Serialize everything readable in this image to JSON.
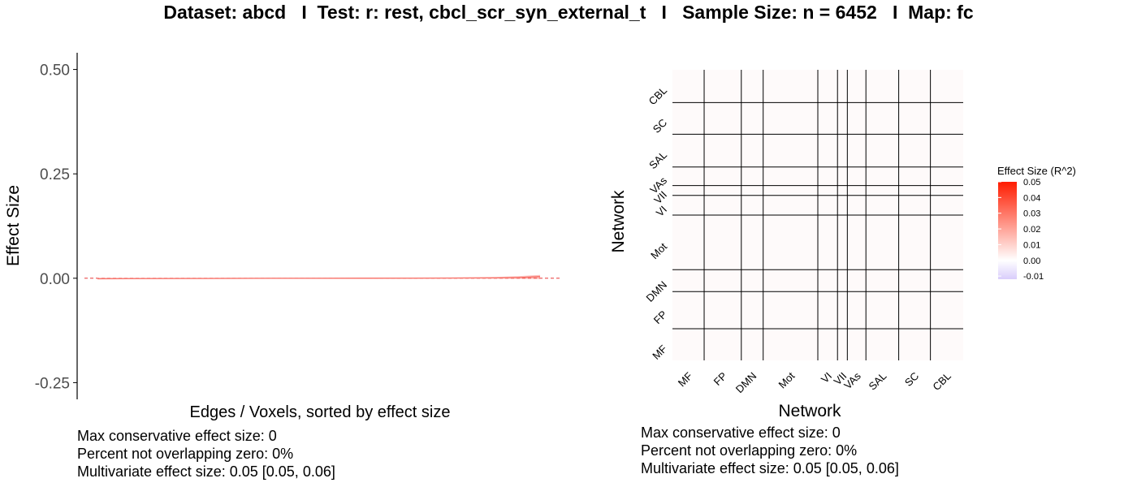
{
  "title": "Dataset: abcd   I  Test: r: rest, cbcl_scr_syn_external_t   I   Sample Size: n = 6452   I  Map: fc",
  "chart_data": [
    {
      "type": "line",
      "xlabel": "Edges / Voxels, sorted by effect size",
      "ylabel": "Effect Size",
      "yticks": [
        "0.50",
        "0.25",
        "0.00",
        "-0.25"
      ],
      "ytick_values": [
        0.5,
        0.25,
        0.0,
        -0.25
      ],
      "ylim": [
        -0.29,
        0.54
      ],
      "x": [
        0,
        10,
        20,
        30,
        40,
        50,
        60,
        70,
        80,
        90,
        95,
        100
      ],
      "y": [
        -0.001,
        -0.0008,
        -0.0005,
        -0.0003,
        -0.0001,
        0.0,
        0.0001,
        0.0003,
        0.0005,
        0.0009,
        0.0015,
        0.004
      ],
      "ci_upper": [
        0.0005,
        0.0005,
        0.0005,
        0.0006,
        0.0007,
        0.0008,
        0.0009,
        0.001,
        0.0015,
        0.003,
        0.005,
        0.008
      ],
      "ci_lower": [
        -0.003,
        -0.002,
        -0.0018,
        -0.0015,
        -0.0012,
        -0.001,
        -0.0009,
        -0.0008,
        -0.0007,
        -0.0008,
        -0.001,
        -0.002
      ],
      "reference_line": 0,
      "line_color": "#f8766d",
      "ref_color": "#e41a1c",
      "grid": false,
      "stats": [
        "Max conservative effect size: 0",
        "Percent not overlapping zero: 0%",
        "Multivariate effect size: 0.05 [0.05, 0.06]"
      ]
    },
    {
      "type": "heatmap",
      "xlabel": "Network",
      "ylabel": "Network",
      "networks": [
        "MF",
        "FP",
        "DMN",
        "Mot",
        "VI",
        "VII",
        "VAs",
        "SAL",
        "SC",
        "CBL"
      ],
      "network_sizes": [
        29,
        34,
        20,
        50,
        18,
        9,
        17,
        30,
        29,
        30
      ],
      "cell_value": 0.0,
      "legend": {
        "title": "Effect Size (R^2)",
        "labels": [
          "0.05",
          "0.04",
          "0.03",
          "0.02",
          "0.01",
          "0.00",
          "-0.01"
        ],
        "values": [
          0.05,
          0.04,
          0.03,
          0.02,
          0.01,
          0.0,
          -0.01
        ],
        "range": [
          -0.012,
          0.05
        ],
        "color_low": "#d9cdfb",
        "color_mid": "#ffffff",
        "color_high": "#ff1c00"
      },
      "stats": [
        "Max conservative effect size: 0",
        "Percent not overlapping zero: 0%",
        "Multivariate effect size: 0.05 [0.05, 0.06]"
      ]
    }
  ]
}
